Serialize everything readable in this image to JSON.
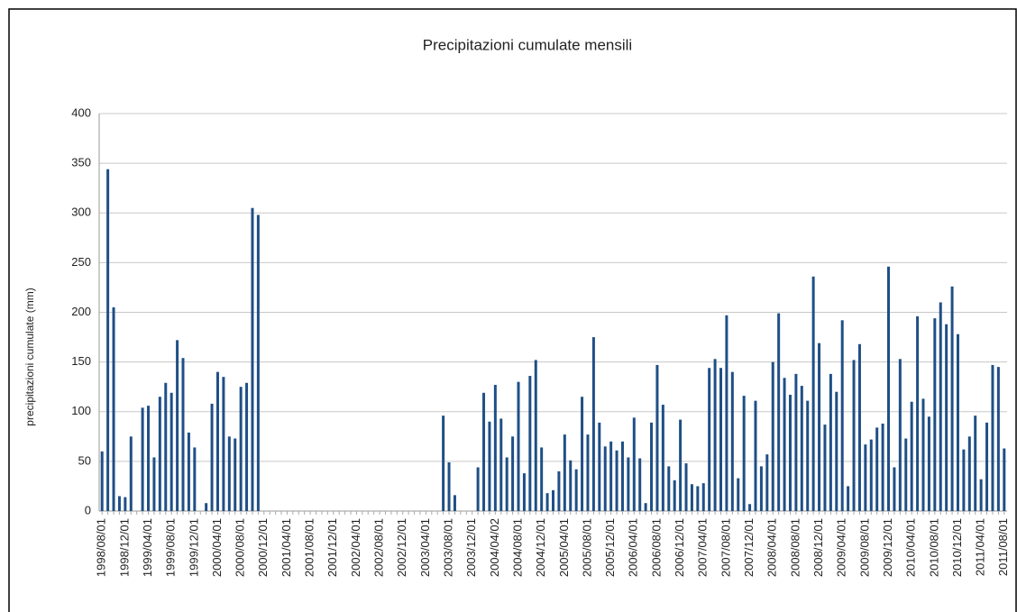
{
  "chart_data": {
    "type": "bar",
    "title": "Precipitazioni cumulate mensili",
    "y_label": "precipitazioni cumulate (mm)",
    "categories": [
      "1998/08/01",
      null,
      null,
      null,
      "1998/12/01",
      null,
      null,
      null,
      "1999/04/01",
      null,
      null,
      null,
      "1999/08/01",
      null,
      null,
      null,
      "1999/12/01",
      null,
      null,
      null,
      "2000/04/01",
      null,
      null,
      null,
      "2000/08/01",
      null,
      null,
      null,
      "2000/12/01",
      null,
      null,
      null,
      "2001/04/01",
      null,
      null,
      null,
      "2001/08/01",
      null,
      null,
      null,
      "2001/12/01",
      null,
      null,
      null,
      "2002/04/01",
      null,
      null,
      null,
      "2002/08/01",
      null,
      null,
      null,
      "2002/12/01",
      null,
      null,
      null,
      "2003/04/01",
      null,
      null,
      null,
      "2003/08/01",
      null,
      null,
      null,
      "2003/12/01",
      null,
      null,
      null,
      "2004/04/02",
      null,
      null,
      null,
      "2004/08/01",
      null,
      null,
      null,
      "2004/12/01",
      null,
      null,
      null,
      "2005/04/01",
      null,
      null,
      null,
      "2005/08/01",
      null,
      null,
      null,
      "2005/12/01",
      null,
      null,
      null,
      "2006/04/01",
      null,
      null,
      null,
      "2006/08/01",
      null,
      null,
      null,
      "2006/12/01",
      null,
      null,
      null,
      "2007/04/01",
      null,
      null,
      null,
      "2007/08/01",
      null,
      null,
      null,
      "2007/12/01",
      null,
      null,
      null,
      "2008/04/01",
      null,
      null,
      null,
      "2008/08/01",
      null,
      null,
      null,
      "2008/12/01",
      null,
      null,
      null,
      "2009/04/01",
      null,
      null,
      null,
      "2009/08/01",
      null,
      null,
      null,
      "2009/12/01",
      null,
      null,
      null,
      "2010/04/01",
      null,
      null,
      null,
      "2010/08/01",
      null,
      null,
      null,
      "2010/12/01",
      null,
      null,
      null,
      "2011/04/01",
      null,
      null,
      null,
      "2011/08/01"
    ],
    "values": [
      60,
      344,
      205,
      15,
      14,
      75,
      0,
      104,
      106,
      54,
      115,
      129,
      119,
      172,
      154,
      79,
      64,
      0,
      8,
      108,
      140,
      135,
      75,
      73,
      125,
      129,
      305,
      298,
      0,
      0,
      0,
      0,
      0,
      0,
      0,
      0,
      0,
      0,
      0,
      0,
      0,
      0,
      0,
      0,
      0,
      0,
      0,
      0,
      0,
      0,
      0,
      0,
      0,
      0,
      0,
      0,
      0,
      0,
      0,
      96,
      49,
      16,
      0,
      0,
      0,
      44,
      119,
      90,
      127,
      93,
      54,
      75,
      130,
      38,
      136,
      152,
      64,
      18,
      21,
      40,
      77,
      51,
      42,
      115,
      77,
      175,
      89,
      65,
      70,
      61,
      70,
      54,
      94,
      53,
      8,
      89,
      147,
      107,
      45,
      31,
      92,
      48,
      27,
      25,
      28,
      144,
      153,
      144,
      197,
      140,
      33,
      116,
      7,
      111,
      45,
      57,
      150,
      199,
      134,
      117,
      138,
      126,
      111,
      236,
      169,
      87,
      138,
      120,
      192,
      25,
      152,
      168,
      67,
      72,
      84,
      88,
      246,
      44,
      153,
      73,
      110,
      196,
      113,
      95,
      194,
      210,
      188,
      226,
      178,
      62,
      75,
      96,
      32,
      89,
      147,
      145,
      63
    ],
    "color": "#1f4f86",
    "ylim": [
      0,
      400
    ],
    "yticks": [
      0,
      50,
      100,
      150,
      200,
      250,
      300,
      350,
      400
    ],
    "grid": true
  }
}
